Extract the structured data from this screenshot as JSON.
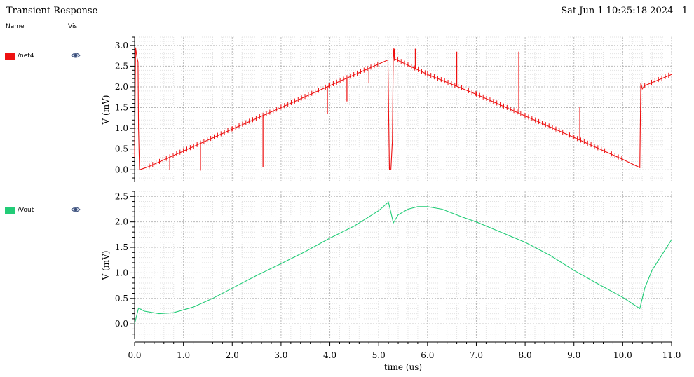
{
  "window": {
    "title": "Transient Response",
    "timestamp": "Sat Jun 1 10:25:18 2024   1"
  },
  "legend": {
    "col_name": "Name",
    "col_vis": "Vis",
    "items": [
      {
        "name": "/net4",
        "color": "#ee1111",
        "icon": "eye-icon"
      },
      {
        "name": "/Vout",
        "color": "#22cc77",
        "icon": "eye-icon"
      }
    ]
  },
  "chart_data": [
    {
      "type": "line",
      "series": [
        {
          "name": "/net4",
          "color": "#ee1111",
          "x": [
            0.0,
            0.02,
            0.05,
            0.07,
            0.08,
            0.1,
            0.3,
            1.0,
            2.0,
            3.0,
            4.0,
            5.0,
            5.19,
            5.22,
            5.25,
            5.28,
            5.3,
            5.32,
            6.0,
            7.0,
            8.0,
            9.0,
            10.0,
            10.35,
            10.37,
            10.4,
            10.45,
            11.0
          ],
          "y": [
            0.3,
            2.95,
            2.7,
            2.6,
            1.0,
            0.0,
            0.08,
            0.45,
            0.98,
            1.5,
            2.03,
            2.55,
            2.65,
            0.0,
            0.0,
            0.7,
            2.93,
            2.68,
            2.3,
            1.82,
            1.3,
            0.78,
            0.25,
            0.05,
            2.1,
            1.95,
            2.03,
            2.3
          ]
        }
      ],
      "spikes": {
        "down": [
          [
            0.72,
            0.0
          ],
          [
            1.35,
            -0.02
          ],
          [
            2.63,
            0.07
          ],
          [
            3.95,
            1.35
          ],
          [
            4.35,
            1.65
          ],
          [
            4.8,
            2.1
          ]
        ],
        "up": [
          [
            5.32,
            2.92
          ],
          [
            5.75,
            2.92
          ],
          [
            6.6,
            2.85
          ],
          [
            7.87,
            2.85
          ],
          [
            9.12,
            1.52
          ]
        ]
      },
      "xlim": [
        0,
        11
      ],
      "ylim": [
        -0.3,
        3.2
      ],
      "yticks": [
        "0.0",
        "0.5",
        "1.0",
        "1.5",
        "2.0",
        "2.5",
        "3.0"
      ],
      "ytick_values": [
        0,
        0.5,
        1.0,
        1.5,
        2.0,
        2.5,
        3.0
      ],
      "ylabel": "V (mV)",
      "grid": true
    },
    {
      "type": "line",
      "series": [
        {
          "name": "/Vout",
          "color": "#22cc77",
          "x": [
            0.0,
            0.08,
            0.2,
            0.5,
            0.8,
            1.2,
            1.6,
            2.0,
            2.5,
            3.0,
            3.5,
            4.0,
            4.5,
            5.0,
            5.2,
            5.3,
            5.4,
            5.6,
            5.8,
            6.0,
            6.3,
            6.7,
            7.0,
            7.5,
            8.0,
            8.5,
            9.0,
            9.5,
            10.0,
            10.35,
            10.45,
            10.6,
            10.8,
            11.0
          ],
          "y": [
            0.0,
            0.31,
            0.25,
            0.2,
            0.22,
            0.33,
            0.5,
            0.7,
            0.95,
            1.18,
            1.42,
            1.68,
            1.92,
            2.22,
            2.39,
            1.98,
            2.14,
            2.25,
            2.3,
            2.3,
            2.25,
            2.1,
            2.0,
            1.8,
            1.6,
            1.35,
            1.05,
            0.78,
            0.52,
            0.3,
            0.7,
            1.05,
            1.35,
            1.65
          ]
        }
      ],
      "xlim": [
        0,
        11
      ],
      "ylim": [
        -0.3,
        2.6
      ],
      "yticks": [
        "0.0",
        "0.5",
        "1.0",
        "1.5",
        "2.0",
        "2.5"
      ],
      "ytick_values": [
        0,
        0.5,
        1.0,
        1.5,
        2.0,
        2.5
      ],
      "xticks": [
        "0.0",
        "1.0",
        "2.0",
        "3.0",
        "4.0",
        "5.0",
        "6.0",
        "7.0",
        "8.0",
        "9.0",
        "10.0",
        "11.0"
      ],
      "xtick_values": [
        0,
        1,
        2,
        3,
        4,
        5,
        6,
        7,
        8,
        9,
        10,
        11
      ],
      "ylabel": "V (mV)",
      "xlabel": "time (us)",
      "grid": true
    }
  ]
}
